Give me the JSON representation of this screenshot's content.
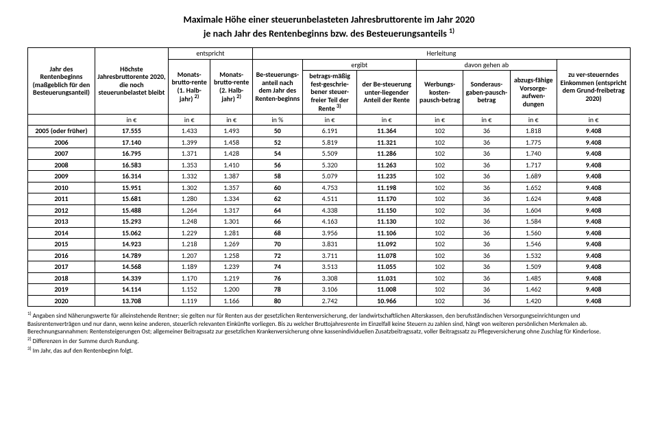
{
  "title_l1": "Maximale Höhe einer steuerunbelasteten Jahresbruttorente im Jahr 2020",
  "title_l2": "je nach Jahr des Rentenbeginns bzw. des Besteuerungsanteils",
  "title_sup": "1)",
  "group_headers": {
    "entspricht": "entspricht",
    "herleitung": "Herleitung",
    "ergibt": "ergibt",
    "davon_ab": "davon gehen ab"
  },
  "col_headers": {
    "year": "Jahr des Rentenbeginns (maßgeblich für den Besteuerungsanteil)",
    "max_rente": "Höchste Jahresbruttorente 2020, die noch steuerunbelastet bleibt",
    "m1": "Monats-brutto-rente (1. Halb-jahr)",
    "m1_sup": "2)",
    "m2": "Monats-brutto-rente (2. Halb-jahr)",
    "m2_sup": "2)",
    "pct": "Be-steuerungs-anteil nach dem Jahr des Renten-beginns",
    "free": "betrags-mäßig fest-geschrie-bener steuer-freier Teil der Rente",
    "free_sup": "3)",
    "tax": "der Be-steuerung unter-liegender Anteil der Rente",
    "wk": "Werbungs-kosten-pausch-betrag",
    "sa": "Sonderaus-gaben-pausch-betrag",
    "vs": "abzugs-fähige Vorsorge-aufwen-dungen",
    "inc": "zu ver-steuerndes Einkommen (entspricht dem Grund-freibetrag 2020)"
  },
  "units": {
    "eur": "in €",
    "pct": "in %"
  },
  "rows": [
    {
      "year": "2005  (oder früher)",
      "max": "17.555",
      "m1": "1.433",
      "m2": "1.493",
      "pct": "50",
      "free": "6.191",
      "tax": "11.364",
      "wk": "102",
      "sa": "36",
      "vs": "1.818",
      "inc": "9.408"
    },
    {
      "year": "2006",
      "max": "17.140",
      "m1": "1.399",
      "m2": "1.458",
      "pct": "52",
      "free": "5.819",
      "tax": "11.321",
      "wk": "102",
      "sa": "36",
      "vs": "1.775",
      "inc": "9.408"
    },
    {
      "year": "2007",
      "max": "16.795",
      "m1": "1.371",
      "m2": "1.428",
      "pct": "54",
      "free": "5.509",
      "tax": "11.286",
      "wk": "102",
      "sa": "36",
      "vs": "1.740",
      "inc": "9.408"
    },
    {
      "year": "2008",
      "max": "16.583",
      "m1": "1.353",
      "m2": "1.410",
      "pct": "56",
      "free": "5.320",
      "tax": "11.263",
      "wk": "102",
      "sa": "36",
      "vs": "1.717",
      "inc": "9.408"
    },
    {
      "year": "2009",
      "max": "16.314",
      "m1": "1.332",
      "m2": "1.387",
      "pct": "58",
      "free": "5.079",
      "tax": "11.235",
      "wk": "102",
      "sa": "36",
      "vs": "1.689",
      "inc": "9.408"
    },
    {
      "year": "2010",
      "max": "15.951",
      "m1": "1.302",
      "m2": "1.357",
      "pct": "60",
      "free": "4.753",
      "tax": "11.198",
      "wk": "102",
      "sa": "36",
      "vs": "1.652",
      "inc": "9.408"
    },
    {
      "year": "2011",
      "max": "15.681",
      "m1": "1.280",
      "m2": "1.334",
      "pct": "62",
      "free": "4.511",
      "tax": "11.170",
      "wk": "102",
      "sa": "36",
      "vs": "1.624",
      "inc": "9.408"
    },
    {
      "year": "2012",
      "max": "15.488",
      "m1": "1.264",
      "m2": "1.317",
      "pct": "64",
      "free": "4.338",
      "tax": "11.150",
      "wk": "102",
      "sa": "36",
      "vs": "1.604",
      "inc": "9.408"
    },
    {
      "year": "2013",
      "max": "15.293",
      "m1": "1.248",
      "m2": "1.301",
      "pct": "66",
      "free": "4.163",
      "tax": "11.130",
      "wk": "102",
      "sa": "36",
      "vs": "1.584",
      "inc": "9.408"
    },
    {
      "year": "2014",
      "max": "15.062",
      "m1": "1.229",
      "m2": "1.281",
      "pct": "68",
      "free": "3.956",
      "tax": "11.106",
      "wk": "102",
      "sa": "36",
      "vs": "1.560",
      "inc": "9.408"
    },
    {
      "year": "2015",
      "max": "14.923",
      "m1": "1.218",
      "m2": "1.269",
      "pct": "70",
      "free": "3.831",
      "tax": "11.092",
      "wk": "102",
      "sa": "36",
      "vs": "1.546",
      "inc": "9.408"
    },
    {
      "year": "2016",
      "max": "14.789",
      "m1": "1.207",
      "m2": "1.258",
      "pct": "72",
      "free": "3.711",
      "tax": "11.078",
      "wk": "102",
      "sa": "36",
      "vs": "1.532",
      "inc": "9.408"
    },
    {
      "year": "2017",
      "max": "14.568",
      "m1": "1.189",
      "m2": "1.239",
      "pct": "74",
      "free": "3.513",
      "tax": "11.055",
      "wk": "102",
      "sa": "36",
      "vs": "1.509",
      "inc": "9.408"
    },
    {
      "year": "2018",
      "max": "14.339",
      "m1": "1.170",
      "m2": "1.219",
      "pct": "76",
      "free": "3.308",
      "tax": "11.031",
      "wk": "102",
      "sa": "36",
      "vs": "1.485",
      "inc": "9.408"
    },
    {
      "year": "2019",
      "max": "14.114",
      "m1": "1.152",
      "m2": "1.200",
      "pct": "78",
      "free": "3.106",
      "tax": "11.008",
      "wk": "102",
      "sa": "36",
      "vs": "1.462",
      "inc": "9.408"
    },
    {
      "year": "2020",
      "max": "13.708",
      "m1": "1.119",
      "m2": "1.166",
      "pct": "80",
      "free": "2.742",
      "tax": "10.966",
      "wk": "102",
      "sa": "36",
      "vs": "1.420",
      "inc": "9.408"
    }
  ],
  "footnotes": {
    "f1_sup": "1)",
    "f1": "Angaben sind Näherungswerte für alleinstehende Rentner; sie gelten nur für Renten aus der gesetzlichen Rentenversicherung, der landwirtschaftlichen Alterskassen, den berufsständischen Versorgungseinrichtungen und Basisrentenverträgen und nur dann, wenn keine anderen, steuerlich relevanten Einkünfte vorliegen. Bis zu welcher Bruttojahresrente im Einzelfall keine Steuern zu zahlen sind, hängt von weiteren persönlichen Merkmalen ab. Berechnungsannahmen: Rentensteigerungen Ost; allgemeiner Beitragssatz zur gesetzlichen Krankenversicherung ohne kassenindividuellen Zusatzbeitragssatz, voller Beitragssatz zu Pflegeversicherung ohne Zuschlag für Kinderlose.",
    "f2_sup": "2)",
    "f2": "Differenzen in der Summe durch Rundung.",
    "f3_sup": "3)",
    "f3": "Im Jahr, das auf den Rentenbeginn folgt."
  }
}
